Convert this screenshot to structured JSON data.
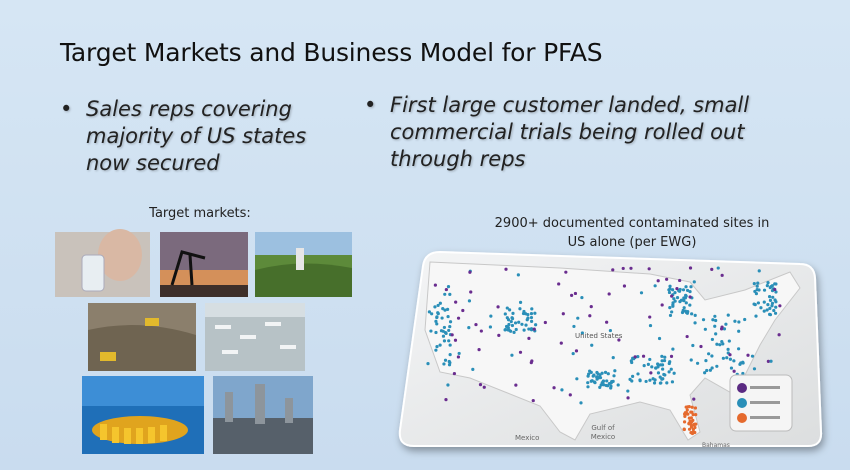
{
  "slide": {
    "title": "Target Markets and Business Model for PFAS",
    "bullets": [
      {
        "lines": [
          "Sales reps covering",
          "majority of US states",
          "now secured"
        ]
      },
      {
        "lines": [
          "First large customer landed, small",
          "commercial trials being rolled out",
          "through reps"
        ]
      }
    ],
    "markets_label": "Target markets:",
    "map_caption": [
      "2900+ documented contaminated sites in",
      "US alone (per EWG)"
    ],
    "map_labels": {
      "country": "United States",
      "gulf": "Gulf of",
      "gulf2": "Mexico",
      "mexico": "Mexico",
      "bahamas": "Bahamas"
    }
  }
}
